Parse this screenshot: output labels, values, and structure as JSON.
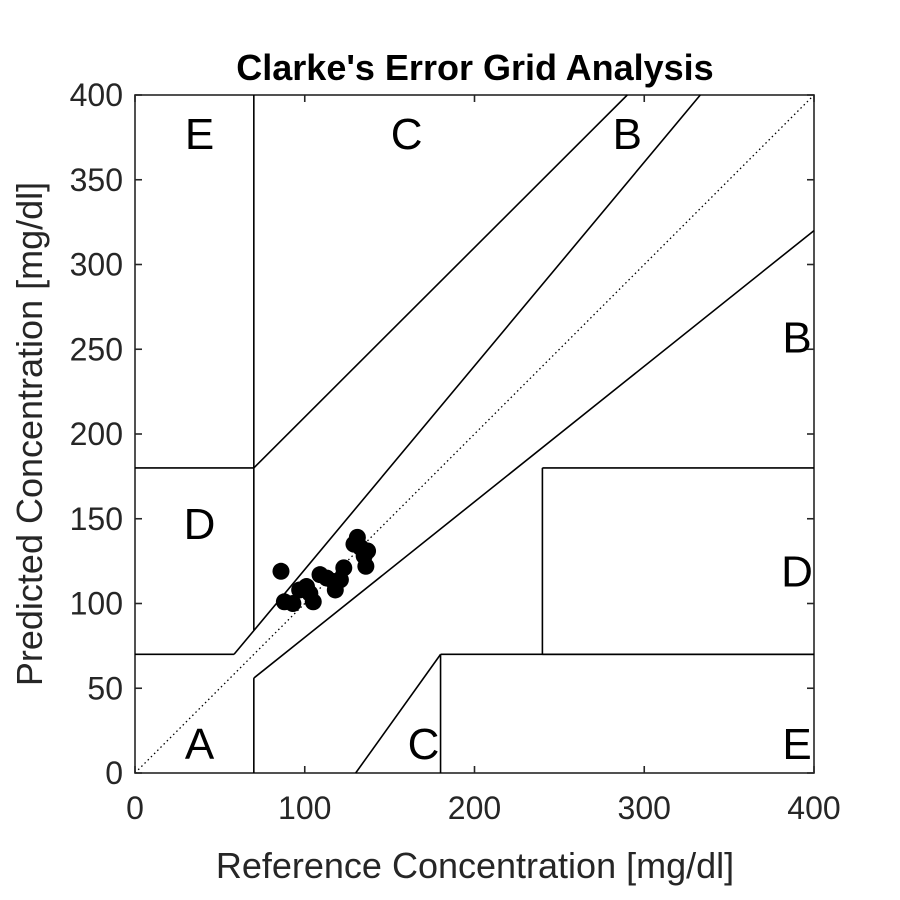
{
  "chart_data": {
    "type": "scatter",
    "title": "Clarke's Error Grid Analysis",
    "xlabel": "Reference Concentration [mg/dl]",
    "ylabel": "Predicted Concentration [mg/dl]",
    "xlim": [
      0,
      400
    ],
    "ylim": [
      0,
      400
    ],
    "xticks": [
      "0",
      "100",
      "200",
      "300",
      "400"
    ],
    "yticks": [
      "0",
      "50",
      "100",
      "150",
      "200",
      "250",
      "300",
      "350",
      "400"
    ],
    "grid": false,
    "identity_line": "dotted",
    "points": [
      {
        "x": 86,
        "y": 119
      },
      {
        "x": 88,
        "y": 101
      },
      {
        "x": 93,
        "y": 100
      },
      {
        "x": 97,
        "y": 108
      },
      {
        "x": 101,
        "y": 110
      },
      {
        "x": 103,
        "y": 106
      },
      {
        "x": 105,
        "y": 101
      },
      {
        "x": 109,
        "y": 117
      },
      {
        "x": 113,
        "y": 115
      },
      {
        "x": 117,
        "y": 113
      },
      {
        "x": 118,
        "y": 108
      },
      {
        "x": 121,
        "y": 114
      },
      {
        "x": 123,
        "y": 121
      },
      {
        "x": 129,
        "y": 135
      },
      {
        "x": 131,
        "y": 139
      },
      {
        "x": 133,
        "y": 133
      },
      {
        "x": 135,
        "y": 128
      },
      {
        "x": 136,
        "y": 122
      },
      {
        "x": 137,
        "y": 131
      }
    ],
    "zone_lines": [
      [
        [
          0,
          70
        ],
        [
          58.3,
          70
        ]
      ],
      [
        [
          58.3,
          70
        ],
        [
          70,
          84
        ]
      ],
      [
        [
          70,
          84
        ],
        [
          70,
          400
        ]
      ],
      [
        [
          70,
          180
        ],
        [
          290,
          400
        ]
      ],
      [
        [
          70,
          84
        ],
        [
          333,
          400
        ]
      ],
      [
        [
          0,
          180
        ],
        [
          70,
          180
        ]
      ],
      [
        [
          70,
          56
        ],
        [
          70,
          0
        ]
      ],
      [
        [
          70,
          56
        ],
        [
          400,
          320
        ]
      ],
      [
        [
          240,
          70
        ],
        [
          240,
          180
        ]
      ],
      [
        [
          240,
          180
        ],
        [
          400,
          180
        ]
      ],
      [
        [
          240,
          70
        ],
        [
          400,
          70
        ]
      ],
      [
        [
          180,
          70
        ],
        [
          180,
          0
        ]
      ],
      [
        [
          180,
          70
        ],
        [
          400,
          70
        ]
      ],
      [
        [
          130,
          0
        ],
        [
          180,
          70
        ]
      ]
    ],
    "zone_labels": [
      {
        "text": "E",
        "x": 38,
        "y": 375
      },
      {
        "text": "C",
        "x": 160,
        "y": 375
      },
      {
        "text": "B",
        "x": 290,
        "y": 375
      },
      {
        "text": "B",
        "x": 390,
        "y": 255
      },
      {
        "text": "D",
        "x": 38,
        "y": 145
      },
      {
        "text": "D",
        "x": 390,
        "y": 117
      },
      {
        "text": "A",
        "x": 38,
        "y": 15
      },
      {
        "text": "C",
        "x": 170,
        "y": 15
      },
      {
        "text": "E",
        "x": 390,
        "y": 15
      }
    ]
  }
}
